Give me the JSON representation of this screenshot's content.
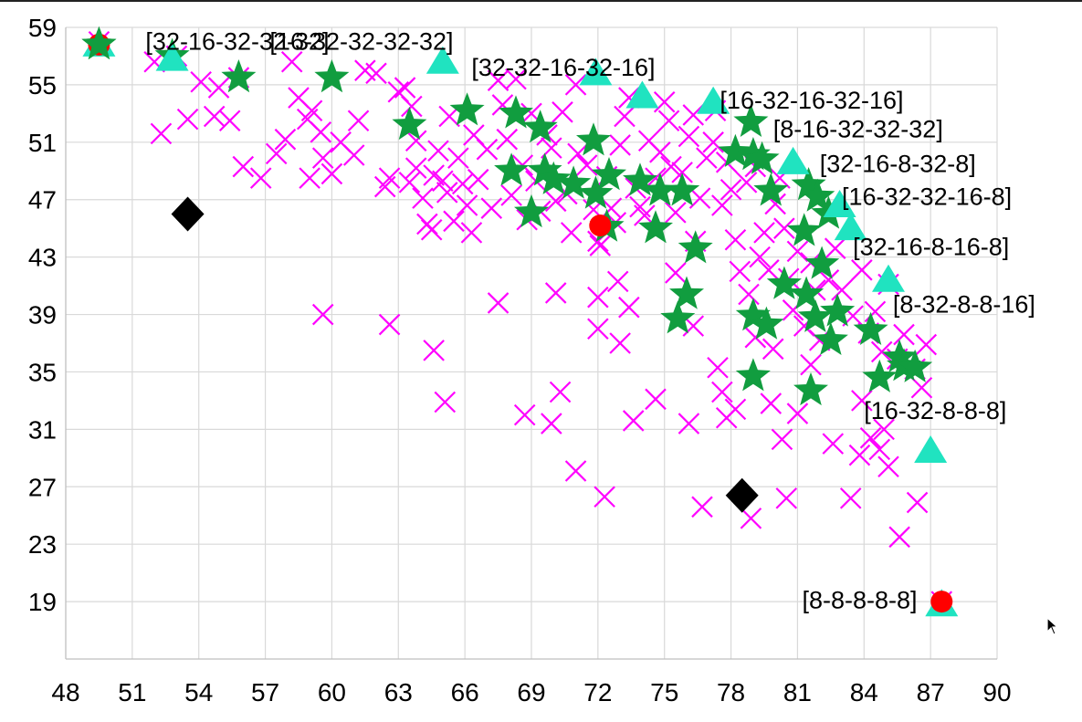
{
  "chart_data": {
    "type": "scatter",
    "title": "",
    "xlabel": "",
    "ylabel": "",
    "xlim": [
      48,
      90
    ],
    "ylim": [
      15,
      59
    ],
    "xticks": [
      48,
      51,
      54,
      57,
      60,
      63,
      66,
      69,
      72,
      75,
      78,
      81,
      84,
      87,
      90
    ],
    "yticks": [
      19,
      23,
      27,
      31,
      35,
      39,
      43,
      47,
      51,
      55,
      59
    ],
    "grid": true,
    "legend": "none",
    "colors": {
      "cross": "#ff00ff",
      "star": "#119d3f",
      "triangle": "#20e3c0",
      "diamond": "#000000",
      "circle": "#ff0000"
    },
    "series": [
      {
        "marker": "cross",
        "points": [
          [
            49.5,
            58.0
          ],
          [
            52.0,
            56.6
          ],
          [
            53.0,
            57.0
          ],
          [
            52.3,
            51.6
          ],
          [
            53.5,
            52.6
          ],
          [
            54.1,
            55.2
          ],
          [
            54.7,
            52.8
          ],
          [
            54.9,
            54.8
          ],
          [
            55.4,
            52.5
          ],
          [
            55.8,
            55.5
          ],
          [
            56.0,
            49.3
          ],
          [
            57.5,
            50.2
          ],
          [
            58.2,
            56.6
          ],
          [
            56.8,
            48.5
          ],
          [
            57.9,
            51.2
          ],
          [
            58.5,
            54.1
          ],
          [
            58.9,
            52.6
          ],
          [
            59.1,
            53.2
          ],
          [
            59.5,
            51.7
          ],
          [
            59.6,
            49.9
          ],
          [
            59.0,
            48.5
          ],
          [
            60.0,
            48.8
          ],
          [
            60.4,
            51.0
          ],
          [
            61.2,
            52.5
          ],
          [
            61.0,
            50.1
          ],
          [
            61.5,
            56.0
          ],
          [
            62.0,
            55.8
          ],
          [
            62.4,
            47.9
          ],
          [
            62.6,
            48.5
          ],
          [
            63.0,
            54.5
          ],
          [
            63.3,
            54.8
          ],
          [
            63.6,
            53.5
          ],
          [
            63.8,
            51.1
          ],
          [
            63.5,
            48.2
          ],
          [
            63.8,
            49.2
          ],
          [
            64.1,
            47.1
          ],
          [
            64.3,
            45.3
          ],
          [
            64.5,
            44.9
          ],
          [
            64.6,
            48.7
          ],
          [
            64.8,
            50.4
          ],
          [
            65.0,
            48.3
          ],
          [
            65.2,
            47.5
          ],
          [
            65.3,
            52.8
          ],
          [
            65.5,
            45.5
          ],
          [
            65.7,
            49.9
          ],
          [
            65.9,
            48.1
          ],
          [
            66.1,
            46.6
          ],
          [
            66.3,
            44.7
          ],
          [
            66.4,
            51.5
          ],
          [
            66.6,
            48.4
          ],
          [
            67.0,
            50.5
          ],
          [
            67.2,
            46.4
          ],
          [
            67.5,
            55.3
          ],
          [
            67.7,
            53.6
          ],
          [
            67.9,
            51.2
          ],
          [
            68.1,
            47.3
          ],
          [
            68.3,
            55.4
          ],
          [
            68.6,
            49.4
          ],
          [
            68.8,
            45.6
          ],
          [
            69.0,
            53.0
          ],
          [
            69.2,
            48.3
          ],
          [
            69.4,
            46.2
          ],
          [
            69.7,
            51.5
          ],
          [
            69.9,
            50.6
          ],
          [
            70.1,
            46.9
          ],
          [
            70.4,
            53.1
          ],
          [
            70.6,
            47.4
          ],
          [
            70.8,
            44.7
          ],
          [
            71.0,
            55.0
          ],
          [
            71.1,
            50.2
          ],
          [
            71.5,
            49.4
          ],
          [
            71.8,
            46.3
          ],
          [
            72.0,
            44.1
          ],
          [
            72.1,
            43.8
          ],
          [
            72.4,
            48.6
          ],
          [
            72.6,
            46.4
          ],
          [
            72.8,
            45.4
          ],
          [
            73.0,
            50.8
          ],
          [
            73.2,
            52.8
          ],
          [
            73.4,
            54.1
          ],
          [
            73.7,
            47.8
          ],
          [
            73.9,
            46.5
          ],
          [
            74.1,
            45.9
          ],
          [
            74.3,
            51.1
          ],
          [
            74.6,
            48.5
          ],
          [
            74.8,
            50.3
          ],
          [
            75.0,
            53.8
          ],
          [
            75.2,
            52.5
          ],
          [
            75.3,
            49.3
          ],
          [
            75.5,
            46.1
          ],
          [
            75.8,
            48.9
          ],
          [
            76.1,
            51.4
          ],
          [
            76.3,
            52.9
          ],
          [
            76.4,
            44.1
          ],
          [
            76.6,
            47.1
          ],
          [
            76.9,
            49.9
          ],
          [
            77.2,
            51.0
          ],
          [
            77.3,
            53.2
          ],
          [
            77.6,
            46.6
          ],
          [
            77.8,
            49.6
          ],
          [
            78.0,
            47.7
          ],
          [
            78.2,
            44.2
          ],
          [
            78.4,
            42.0
          ],
          [
            78.7,
            48.2
          ],
          [
            78.8,
            40.4
          ],
          [
            79.1,
            49.3
          ],
          [
            79.3,
            43.0
          ],
          [
            79.5,
            44.7
          ],
          [
            79.7,
            42.1
          ],
          [
            80.0,
            46.7
          ],
          [
            80.2,
            48.5
          ],
          [
            80.4,
            45.0
          ],
          [
            80.6,
            41.5
          ],
          [
            80.8,
            39.3
          ],
          [
            81.0,
            43.4
          ],
          [
            81.3,
            38.2
          ],
          [
            81.6,
            42.6
          ],
          [
            81.8,
            40.7
          ],
          [
            82.0,
            37.2
          ],
          [
            82.4,
            41.4
          ],
          [
            82.7,
            43.6
          ],
          [
            83.0,
            40.7
          ],
          [
            83.5,
            38.9
          ],
          [
            83.9,
            42.1
          ],
          [
            84.2,
            37.7
          ],
          [
            84.5,
            39.2
          ],
          [
            84.8,
            36.4
          ],
          [
            85.1,
            41.1
          ],
          [
            85.5,
            35.9
          ],
          [
            85.8,
            37.6
          ],
          [
            86.3,
            35.2
          ],
          [
            86.6,
            33.9
          ],
          [
            59.6,
            39.0
          ],
          [
            62.6,
            38.3
          ],
          [
            64.6,
            36.5
          ],
          [
            65.1,
            32.9
          ],
          [
            67.5,
            39.8
          ],
          [
            68.7,
            32.0
          ],
          [
            70.1,
            40.5
          ],
          [
            69.9,
            31.4
          ],
          [
            70.3,
            33.6
          ],
          [
            71.0,
            28.1
          ],
          [
            72.0,
            40.2
          ],
          [
            72.0,
            38.0
          ],
          [
            72.3,
            26.3
          ],
          [
            72.9,
            41.3
          ],
          [
            73.0,
            37.0
          ],
          [
            73.4,
            39.5
          ],
          [
            73.6,
            31.6
          ],
          [
            74.6,
            33.1
          ],
          [
            75.5,
            41.9
          ],
          [
            76.3,
            38.2
          ],
          [
            76.1,
            31.4
          ],
          [
            76.7,
            25.6
          ],
          [
            77.6,
            33.6
          ],
          [
            77.8,
            31.8
          ],
          [
            78.2,
            32.4
          ],
          [
            79.1,
            37.4
          ],
          [
            78.9,
            24.8
          ],
          [
            79.8,
            32.8
          ],
          [
            80.3,
            30.3
          ],
          [
            80.5,
            26.2
          ],
          [
            81.0,
            32.1
          ],
          [
            82.6,
            30.0
          ],
          [
            83.4,
            26.2
          ],
          [
            83.8,
            29.2
          ],
          [
            84.3,
            30.4
          ],
          [
            84.7,
            29.6
          ],
          [
            85.1,
            28.4
          ],
          [
            85.6,
            23.5
          ],
          [
            86.4,
            25.9
          ],
          [
            87.5,
            19.0
          ],
          [
            83.9,
            33.0
          ],
          [
            81.6,
            35.5
          ],
          [
            79.9,
            36.6
          ],
          [
            77.4,
            35.3
          ],
          [
            84.9,
            31.0
          ],
          [
            86.8,
            36.9
          ]
        ]
      },
      {
        "marker": "star",
        "points": [
          [
            49.5,
            57.8
          ],
          [
            52.8,
            57.0
          ],
          [
            55.8,
            55.5
          ],
          [
            60.0,
            55.5
          ],
          [
            63.5,
            52.2
          ],
          [
            66.1,
            53.2
          ],
          [
            68.3,
            53.0
          ],
          [
            69.4,
            52.0
          ],
          [
            71.8,
            51.1
          ],
          [
            68.1,
            49.0
          ],
          [
            69.6,
            49.0
          ],
          [
            70.0,
            48.4
          ],
          [
            70.9,
            48.1
          ],
          [
            71.9,
            47.4
          ],
          [
            72.5,
            48.7
          ],
          [
            69.0,
            46.1
          ],
          [
            72.4,
            45.1
          ],
          [
            73.9,
            48.3
          ],
          [
            74.8,
            47.6
          ],
          [
            75.8,
            47.6
          ],
          [
            74.6,
            45.0
          ],
          [
            76.4,
            43.6
          ],
          [
            76.0,
            40.4
          ],
          [
            75.6,
            38.7
          ],
          [
            78.2,
            50.3
          ],
          [
            79.0,
            50.1
          ],
          [
            79.4,
            49.8
          ],
          [
            78.9,
            52.4
          ],
          [
            79.8,
            47.6
          ],
          [
            81.5,
            48.0
          ],
          [
            81.9,
            47.2
          ],
          [
            82.4,
            46.0
          ],
          [
            81.3,
            44.8
          ],
          [
            82.1,
            42.5
          ],
          [
            79.0,
            38.9
          ],
          [
            79.6,
            38.3
          ],
          [
            80.4,
            41.1
          ],
          [
            81.4,
            40.4
          ],
          [
            81.8,
            38.8
          ],
          [
            82.8,
            39.2
          ],
          [
            82.5,
            37.2
          ],
          [
            84.3,
            37.9
          ],
          [
            85.6,
            36.0
          ],
          [
            85.8,
            35.4
          ],
          [
            86.3,
            35.3
          ],
          [
            84.7,
            34.6
          ],
          [
            79.0,
            34.7
          ],
          [
            81.6,
            33.7
          ]
        ]
      },
      {
        "marker": "triangle",
        "points": [
          [
            49.5,
            57.8
          ],
          [
            52.8,
            56.8
          ],
          [
            65.0,
            56.6
          ],
          [
            71.9,
            55.8
          ],
          [
            74.0,
            54.2
          ],
          [
            77.2,
            53.8
          ],
          [
            80.8,
            49.6
          ],
          [
            82.9,
            46.6
          ],
          [
            83.4,
            45.0
          ],
          [
            85.1,
            41.4
          ],
          [
            87.0,
            29.5
          ],
          [
            87.5,
            18.8
          ]
        ]
      },
      {
        "marker": "diamond",
        "points": [
          [
            53.5,
            46.0
          ],
          [
            78.5,
            26.4
          ]
        ]
      },
      {
        "marker": "circle",
        "points": [
          [
            49.5,
            57.8
          ],
          [
            72.1,
            45.2
          ],
          [
            87.5,
            19.0
          ]
        ]
      }
    ],
    "annotations": [
      {
        "text": "[32-16-32-32-32]",
        "x": 51.6,
        "y": 58.0,
        "anchor": "start"
      },
      {
        "text": "[16-32-32-32-32]",
        "x": 57.2,
        "y": 58.0,
        "anchor": "start"
      },
      {
        "text": "[32-32-16-32-16]",
        "x": 66.3,
        "y": 56.2,
        "anchor": "start"
      },
      {
        "text": "[16-32-16-32-16]",
        "x": 77.5,
        "y": 53.9,
        "anchor": "start"
      },
      {
        "text": "[8-16-32-32-32]",
        "x": 79.9,
        "y": 51.9,
        "anchor": "start"
      },
      {
        "text": "[32-16-8-32-8]",
        "x": 82.0,
        "y": 49.5,
        "anchor": "start"
      },
      {
        "text": "[16-32-32-16-8]",
        "x": 83.0,
        "y": 47.2,
        "anchor": "start"
      },
      {
        "text": "[32-16-8-16-8]",
        "x": 83.5,
        "y": 43.7,
        "anchor": "start"
      },
      {
        "text": "[8-32-8-8-16]",
        "x": 85.3,
        "y": 39.7,
        "anchor": "start"
      },
      {
        "text": "[16-32-8-8-8]",
        "x": 84.0,
        "y": 32.3,
        "anchor": "start"
      },
      {
        "text": "[8-8-8-8-8]",
        "x": 86.4,
        "y": 19.1,
        "anchor": "end"
      }
    ]
  }
}
